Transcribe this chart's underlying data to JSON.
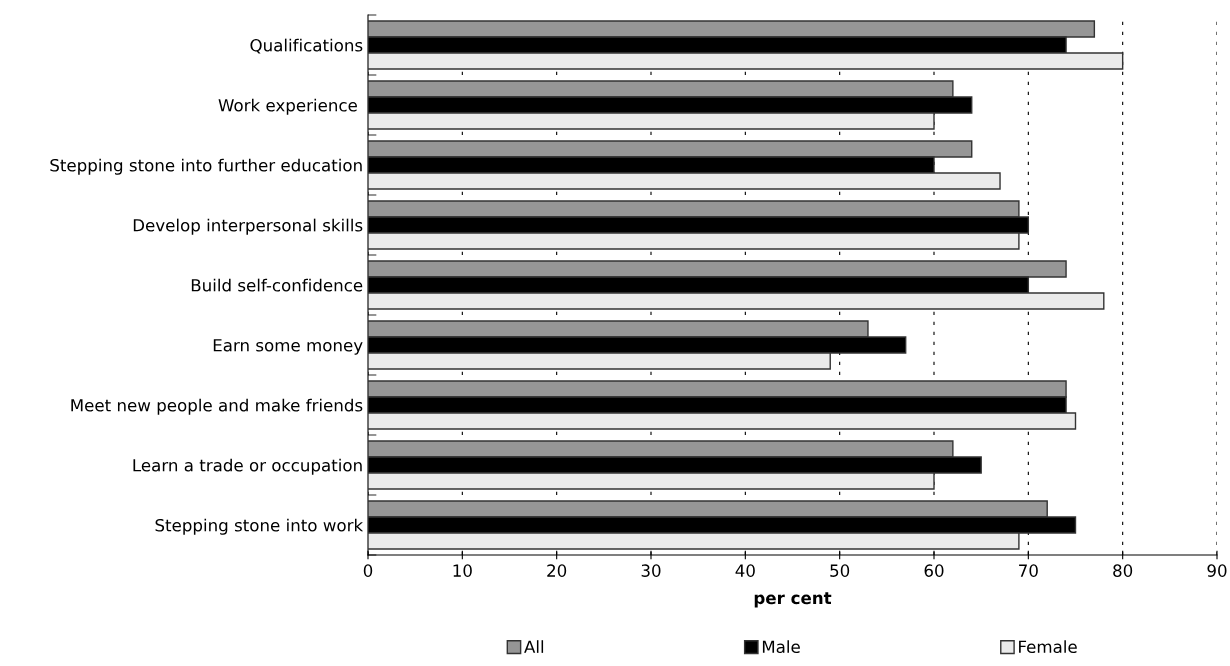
{
  "chart_data": {
    "type": "bar",
    "orientation": "horizontal",
    "xlabel": "per cent",
    "categories": [
      "Qualifications",
      "Work experience ",
      "Stepping stone into further education",
      "Develop interpersonal skills",
      "Build self-confidence",
      "Earn some money",
      "Meet new people and make friends",
      "Learn a trade or occupation",
      "Stepping stone into work"
    ],
    "series": [
      {
        "name": "All",
        "color": "#969696",
        "values": [
          77,
          62,
          64,
          69,
          74,
          53,
          74,
          62,
          72
        ]
      },
      {
        "name": "Male",
        "color": "#000000",
        "values": [
          74,
          64,
          60,
          70,
          70,
          57,
          74,
          65,
          75
        ]
      },
      {
        "name": "Female",
        "color": "#eaeaea",
        "values": [
          80,
          60,
          67,
          69,
          78,
          49,
          75,
          60,
          69
        ]
      }
    ],
    "xlim": [
      0,
      90
    ],
    "xticks": [
      0,
      10,
      20,
      30,
      40,
      50,
      60,
      70,
      80,
      90
    ],
    "grid": "x",
    "legend": "bottom"
  }
}
